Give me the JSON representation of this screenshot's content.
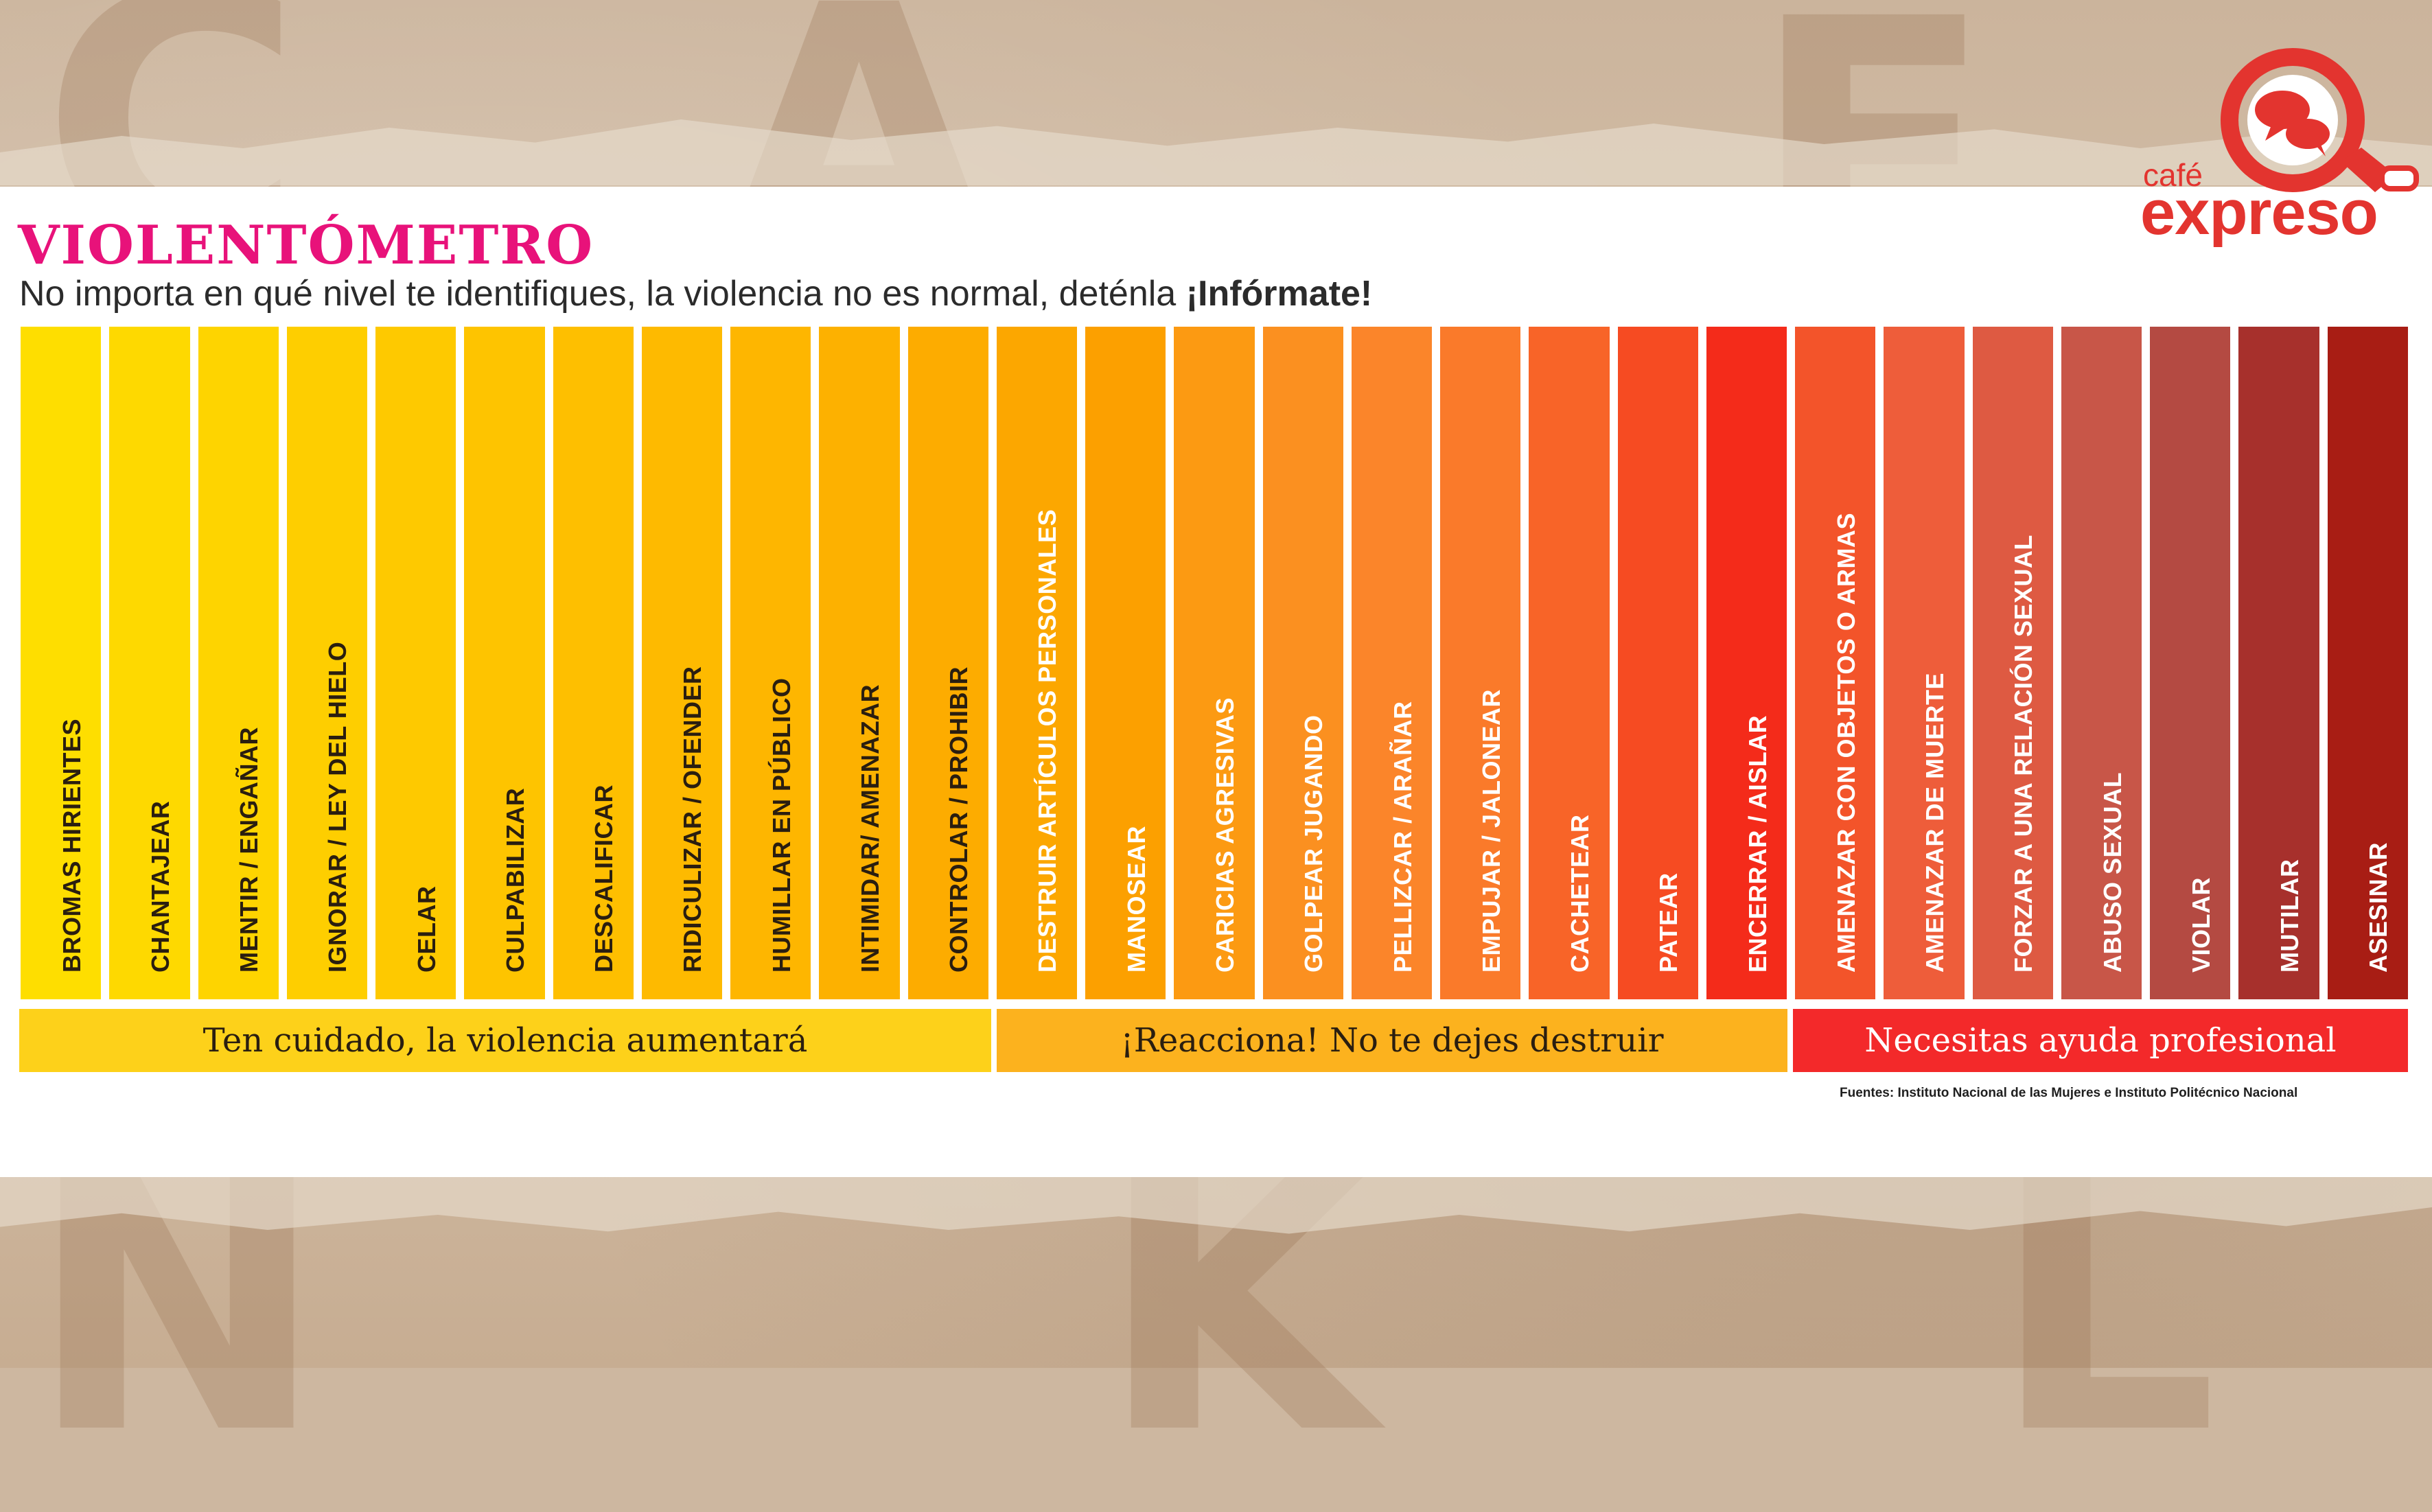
{
  "title": "VIOLENTÓMETRO",
  "subtitle": {
    "text": "No importa en qué nivel te identifiques, la violencia no es normal, deténla ",
    "emphasis": "¡Infórmate!"
  },
  "logo": {
    "small": "café",
    "big": "expreso"
  },
  "levels": [
    {
      "label": "BROMAS HIRIENTES",
      "color": "#fede00",
      "text": "dark"
    },
    {
      "label": "CHANTAJEAR",
      "color": "#fed900",
      "text": "dark"
    },
    {
      "label": "MENTIR / ENGAÑAR",
      "color": "#fed400",
      "text": "dark"
    },
    {
      "label": "IGNORAR / LEY DEL HIELO",
      "color": "#fece00",
      "text": "dark"
    },
    {
      "label": "CELAR",
      "color": "#fec900",
      "text": "dark"
    },
    {
      "label": "CULPABILIZAR",
      "color": "#fec400",
      "text": "dark"
    },
    {
      "label": "DESCALIFICAR",
      "color": "#febf00",
      "text": "dark"
    },
    {
      "label": "RIDICULIZAR / OFENDER",
      "color": "#feba00",
      "text": "dark"
    },
    {
      "label": "HUMILLAR EN PÚBLICO",
      "color": "#feb600",
      "text": "dark"
    },
    {
      "label": "INTIMIDAR/ AMENAZAR",
      "color": "#fdb100",
      "text": "dark"
    },
    {
      "label": "CONTROLAR / PROHIBIR",
      "color": "#fdac00",
      "text": "dark"
    },
    {
      "label": "DESTRUIR ARTÍCULOS PERSONALES",
      "color": "#fca700",
      "text": "light"
    },
    {
      "label": "MANOSEAR",
      "color": "#fca000",
      "text": "light"
    },
    {
      "label": "CARICIAS AGRESIVAS",
      "color": "#fc9a12",
      "text": "light"
    },
    {
      "label": "GOLPEAR JUGANDO",
      "color": "#fb9020",
      "text": "light"
    },
    {
      "label": "PELLIZCAR / ARAÑAR",
      "color": "#fb852a",
      "text": "light"
    },
    {
      "label": "EMPUJAR / JALONEAR",
      "color": "#fa7a2a",
      "text": "light"
    },
    {
      "label": "CACHETEAR",
      "color": "#f86428",
      "text": "light"
    },
    {
      "label": "PATEAR",
      "color": "#f64b22",
      "text": "light"
    },
    {
      "label": "ENCERRAR / AISLAR",
      "color": "#f42b1a",
      "text": "light"
    },
    {
      "label": "AMENAZAR CON OBJETOS O ARMAS",
      "color": "#f3542a",
      "text": "light"
    },
    {
      "label": "AMENAZAR DE MUERTE",
      "color": "#ee5d3a",
      "text": "light"
    },
    {
      "label": "FORZAR A UNA RELACIÓN SEXUAL",
      "color": "#de5a42",
      "text": "light"
    },
    {
      "label": "ABUSO SEXUAL",
      "color": "#c85648",
      "text": "light"
    },
    {
      "label": "VIOLAR",
      "color": "#b44a42",
      "text": "light"
    },
    {
      "label": "MUTILAR",
      "color": "#a7302c",
      "text": "light"
    },
    {
      "label": "ASESINAR",
      "color": "#a81d14",
      "text": "light"
    }
  ],
  "bands": [
    "Ten cuidado, la violencia aumentará",
    "¡Reacciona! No te dejes destruir",
    "Necesitas ayuda profesional"
  ],
  "sources": "Fuentes: Instituto Nacional de las Mujeres e Instituto Politécnico Nacional"
}
